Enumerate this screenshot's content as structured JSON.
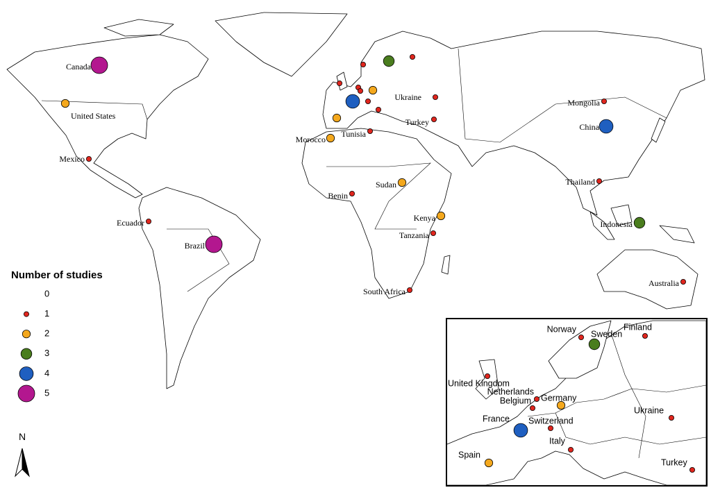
{
  "world": {
    "points": [
      {
        "name": "Canada",
        "value": 5
      },
      {
        "name": "United States",
        "value": 2
      },
      {
        "name": "Mexico",
        "value": 1
      },
      {
        "name": "Ecuador",
        "value": 1
      },
      {
        "name": "Brazil",
        "value": 5
      },
      {
        "name": "Morocco",
        "value": 2
      },
      {
        "name": "Tunisia",
        "value": 1
      },
      {
        "name": "Benin",
        "value": 1
      },
      {
        "name": "Sudan",
        "value": 2
      },
      {
        "name": "Kenya",
        "value": 2
      },
      {
        "name": "Tanzania",
        "value": 1
      },
      {
        "name": "South Africa",
        "value": 1
      },
      {
        "name": "Ukraine",
        "value": 1
      },
      {
        "name": "Turkey",
        "value": 1
      },
      {
        "name": "Mongolia",
        "value": 1
      },
      {
        "name": "China",
        "value": 4
      },
      {
        "name": "Thailand",
        "value": 1
      },
      {
        "name": "Indonesia",
        "value": 3
      },
      {
        "name": "Australia",
        "value": 1
      }
    ]
  },
  "inset": {
    "points": [
      {
        "name": "Norway",
        "value": 1
      },
      {
        "name": "Sweden",
        "value": 3
      },
      {
        "name": "Finland",
        "value": 1
      },
      {
        "name": "United Kingdom",
        "value": 1
      },
      {
        "name": "Netherlands",
        "value": 1
      },
      {
        "name": "Belgium",
        "value": 1
      },
      {
        "name": "Germany",
        "value": 2
      },
      {
        "name": "France",
        "value": 4
      },
      {
        "name": "Switzerland",
        "value": 1
      },
      {
        "name": "Italy",
        "value": 1
      },
      {
        "name": "Spain",
        "value": 2
      },
      {
        "name": "Ukraine",
        "value": 1
      },
      {
        "name": "Turkey",
        "value": 1
      }
    ]
  },
  "legend": {
    "title": "Number of studies",
    "levels": [
      {
        "value": 0
      },
      {
        "value": 1,
        "color": "#e0261e"
      },
      {
        "value": 2,
        "color": "#f4a81d"
      },
      {
        "value": 3,
        "color": "#4a7d1e"
      },
      {
        "value": 4,
        "color": "#1f5fc0"
      },
      {
        "value": 5,
        "color": "#b3178f"
      }
    ]
  },
  "north_label": "N"
}
